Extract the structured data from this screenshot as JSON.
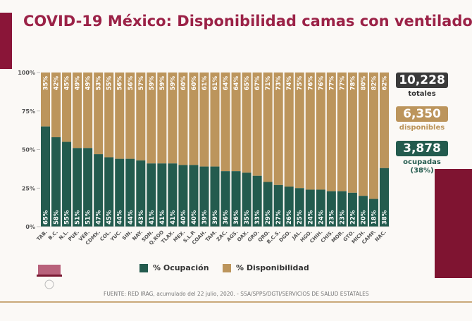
{
  "title": "COVID-19 México: Disponibilidad camas con ventilador",
  "colors": {
    "ocupacion": "#235b4e",
    "disponibilidad": "#bc955c",
    "brand": "#9b2247",
    "totales": "#3a3a3a"
  },
  "stats": {
    "totales": {
      "value": "10,228",
      "label": "totales"
    },
    "disponibles": {
      "value": "6,350",
      "label": "disponibles"
    },
    "ocupadas": {
      "value": "3,878",
      "label": "ocupadas",
      "pct": "(38%)"
    }
  },
  "legend": {
    "ocupacion": "% Ocupación",
    "disponibilidad": "% Disponibilidad"
  },
  "footer": "FUENTE: RED IRAG, acumulado del 22 julio, 2020. -  SSA/SPPS/DGTI/SERVICIOS DE SALUD ESTATALES",
  "chart_data": {
    "type": "bar",
    "stacked": true,
    "ylim": [
      0,
      100
    ],
    "yticks": [
      "0%",
      "25%",
      "50%",
      "75%",
      "100%"
    ],
    "categories": [
      "TAB.",
      "B.C.",
      "N.L.",
      "PUE.",
      "VER.",
      "CDMX.",
      "COL.",
      "YUC.",
      "SIN.",
      "NAY.",
      "SON.",
      "Q.ROO",
      "TLAX.",
      "MEX.",
      "S.L.P.",
      "COAH.",
      "TAM.",
      "ZAC.",
      "AGS.",
      "OAX.",
      "GRO.",
      "QRO.",
      "B.C.S.",
      "DGO.",
      "JAL.",
      "HGO.",
      "CHIH.",
      "CHIS.",
      "MOR.",
      "GTO.",
      "MICH.",
      "CAMP.",
      "NAC."
    ],
    "series": [
      {
        "name": "% Ocupación",
        "values": [
          65,
          58,
          55,
          51,
          51,
          47,
          45,
          44,
          44,
          43,
          41,
          41,
          41,
          40,
          40,
          39,
          39,
          36,
          36,
          35,
          33,
          29,
          27,
          26,
          25,
          24,
          24,
          23,
          23,
          22,
          20,
          18,
          38
        ]
      },
      {
        "name": "% Disponibilidad",
        "values": [
          35,
          42,
          45,
          49,
          49,
          53,
          55,
          56,
          56,
          57,
          59,
          59,
          59,
          60,
          60,
          61,
          61,
          64,
          64,
          65,
          67,
          71,
          73,
          74,
          75,
          76,
          76,
          77,
          77,
          78,
          80,
          82,
          62
        ]
      }
    ],
    "legend_position": "bottom"
  }
}
